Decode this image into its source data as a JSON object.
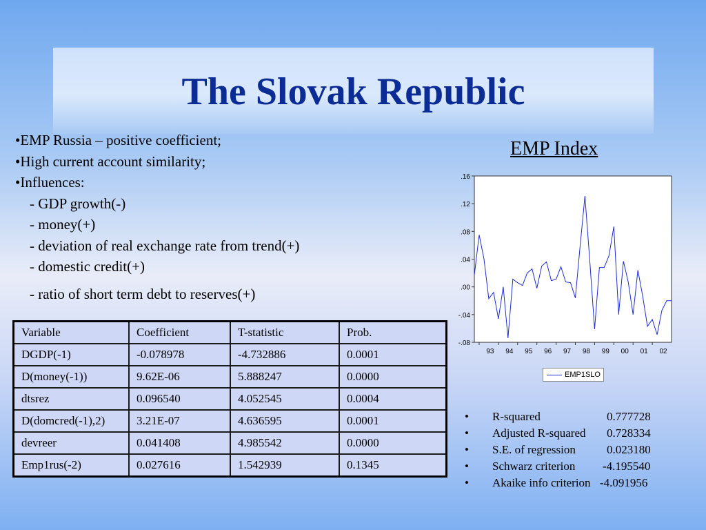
{
  "slide": {
    "title": "The Slovak Republic"
  },
  "bullets": [
    "•EMP Russia – positive coefficient;",
    "•High current account similarity;",
    "•Influences:"
  ],
  "sub_bullets": [
    "- GDP growth(-)",
    "- money(+)",
    "- deviation of real exchange rate from trend(+)",
    "- domestic credit(+)",
    "- ratio of short term debt to reserves(+)"
  ],
  "chart_title": "EMP Index",
  "chart_data": {
    "type": "line",
    "title": "EMP Index",
    "y_tick_labels": [
      ".16",
      ".12",
      ".08",
      ".04",
      ".00",
      "-.04",
      "-.08"
    ],
    "y_ticks": [
      0.16,
      0.12,
      0.08,
      0.04,
      0.0,
      -0.04,
      -0.08
    ],
    "ylim": [
      -0.08,
      0.16
    ],
    "x_tick_labels": [
      "93",
      "94",
      "95",
      "96",
      "97",
      "98",
      "99",
      "00",
      "01",
      "02"
    ],
    "xlim": [
      1992.75,
      2003.0
    ],
    "grid": false,
    "legend_position": "bottom-center",
    "color": "#1e2bd6",
    "series": [
      {
        "name": "EMP1SLO",
        "x": [
          1992.75,
          1993.0,
          1993.25,
          1993.5,
          1993.75,
          1994.0,
          1994.25,
          1994.5,
          1994.75,
          1995.0,
          1995.25,
          1995.5,
          1995.75,
          1996.0,
          1996.25,
          1996.5,
          1996.75,
          1997.0,
          1997.25,
          1997.5,
          1997.75,
          1998.0,
          1998.25,
          1998.5,
          1998.75,
          1999.0,
          1999.25,
          1999.5,
          1999.75,
          2000.0,
          2000.25,
          2000.5,
          2000.75,
          2001.0,
          2001.25,
          2001.5,
          2001.75,
          2002.0,
          2002.25,
          2002.5,
          2002.75,
          2003.0
        ],
        "y": [
          0.017,
          0.075,
          0.04,
          -0.017,
          -0.008,
          -0.046,
          0.0,
          -0.074,
          0.011,
          0.006,
          0.002,
          0.02,
          0.026,
          -0.002,
          0.03,
          0.036,
          0.009,
          0.011,
          0.029,
          0.007,
          0.006,
          -0.016,
          0.06,
          0.131,
          0.038,
          -0.061,
          0.028,
          0.028,
          0.045,
          0.087,
          -0.04,
          0.037,
          0.007,
          -0.04,
          0.024,
          -0.013,
          -0.057,
          -0.047,
          -0.069,
          -0.034,
          -0.02,
          -0.02
        ]
      }
    ]
  },
  "table": {
    "headers": [
      "Variable",
      "Coefficient",
      "T-statistic",
      "Prob."
    ],
    "rows": [
      [
        "DGDP(-1)",
        "-0.078978",
        "-4.732886",
        "0.0001"
      ],
      [
        "D(money(-1))",
        "9.62E-06",
        "5.888247",
        "0.0000"
      ],
      [
        "dtsrez",
        "0.096540",
        "4.052545",
        "0.0004"
      ],
      [
        "D(domcred(-1),2)",
        "3.21E-07",
        "4.636595",
        "0.0001"
      ],
      [
        "devreer",
        "0.041408",
        "4.985542",
        "0.0000"
      ],
      [
        "Emp1rus(-2)",
        "0.027616",
        "1.542939",
        "0.1345"
      ]
    ]
  },
  "stats": [
    {
      "bullet": "•",
      "label": "R-squared",
      "value": "0.777728"
    },
    {
      "bullet": "•",
      "label": "Adjusted R-squared",
      "value": "0.728334"
    },
    {
      "bullet": "•",
      "label": "S.E. of regression",
      "value": "0.023180"
    },
    {
      "bullet": "•",
      "label": "Schwarz criterion",
      "value": "-4.195540"
    },
    {
      "bullet": "•",
      "label": "Akaike info criterion",
      "value": "-4.091956"
    }
  ]
}
